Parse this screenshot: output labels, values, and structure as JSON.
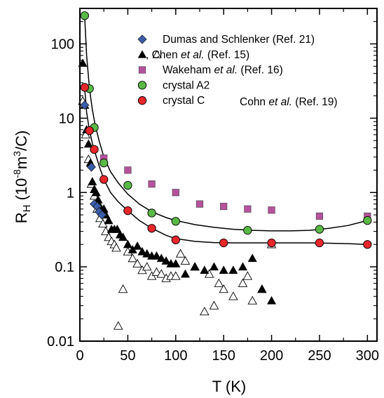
{
  "chart_data": {
    "type": "scatter",
    "xlabel": "T (K)",
    "ylabel": {
      "base": "R",
      "sub": "H",
      "unit_pre": " (10",
      "unit_exp1": "-8",
      "unit_mid": "m",
      "unit_exp2": "3",
      "unit_post": "/C)"
    },
    "xlim": [
      0,
      310
    ],
    "ylim": [
      0.01,
      300
    ],
    "y_scale": "log",
    "grid": false,
    "x_ticks": [
      0,
      50,
      100,
      150,
      200,
      250,
      300
    ],
    "x_tick_labels": [
      "0",
      "50",
      "100",
      "150",
      "200",
      "250",
      "300"
    ],
    "y_ticks": [
      0.01,
      0.1,
      1,
      10,
      100
    ],
    "y_tick_labels": [
      "0.01",
      "0.1",
      "1",
      "10",
      "100"
    ],
    "legend_position": "top-right",
    "series": [
      {
        "name": "Dumas and Schlenker (Ref. 21)",
        "marker": "diamond",
        "fill": "#3a5dac",
        "x": [
          5,
          12,
          15,
          18,
          20,
          23
        ],
        "y": [
          15,
          2.2,
          0.7,
          0.65,
          0.55,
          0.5
        ]
      },
      {
        "name_parts": [
          {
            "t": ", Chen ",
            "italic": false
          },
          {
            "t": "et al.",
            "italic": true
          },
          {
            "t": " (Ref. 15)",
            "italic": false
          }
        ],
        "name": "Chen et al. (Ref. 15)",
        "marker": "triangle-filled",
        "fill": "#000000",
        "x": [
          3,
          5,
          7,
          9,
          11,
          13,
          15,
          17,
          19,
          21,
          23,
          25,
          27,
          30,
          33,
          36,
          39,
          42,
          45,
          50,
          55,
          60,
          65,
          70,
          75,
          80,
          85,
          90,
          95,
          100,
          110,
          120,
          130,
          140,
          150,
          160,
          170,
          180,
          190,
          200
        ],
        "y": [
          55,
          15,
          7,
          4.5,
          2.5,
          1.4,
          1.1,
          1.0,
          0.8,
          0.65,
          0.55,
          0.6,
          0.5,
          0.42,
          0.32,
          0.32,
          0.32,
          0.27,
          0.25,
          0.2,
          0.17,
          0.19,
          0.16,
          0.15,
          0.14,
          0.14,
          0.13,
          0.12,
          0.11,
          0.11,
          0.08,
          0.1,
          0.09,
          0.1,
          0.09,
          0.09,
          0.1,
          0.13,
          0.05,
          0.035
        ]
      },
      {
        "name": "Chen open",
        "marker": "triangle-open",
        "fill": "none",
        "x": [
          3,
          6,
          9,
          12,
          15,
          18,
          21,
          24,
          27,
          30,
          33,
          36,
          38,
          40,
          45,
          50,
          55,
          60,
          65,
          70,
          75,
          80,
          85,
          90,
          95,
          100,
          105,
          110,
          120,
          130,
          135,
          140,
          145,
          150,
          160,
          170,
          175,
          180,
          190,
          200
        ],
        "y": [
          17,
          6,
          2.8,
          1.3,
          0.9,
          0.6,
          0.45,
          0.38,
          0.3,
          0.25,
          0.22,
          0.2,
          0.18,
          0.016,
          0.05,
          0.16,
          0.13,
          0.11,
          0.09,
          0.1,
          0.075,
          0.085,
          0.08,
          0.07,
          0.075,
          0.075,
          0.15,
          0.12,
          0.1,
          0.025,
          0.08,
          0.03,
          0.06,
          0.05,
          0.04,
          0.06,
          0.075,
          0.035,
          0.05,
          0.2
        ]
      },
      {
        "name_parts": [
          {
            "t": "Wakeham ",
            "italic": false
          },
          {
            "t": "et al.",
            "italic": true
          },
          {
            "t": " (Ref. 16)",
            "italic": false
          }
        ],
        "name": "Wakeham et al. (Ref. 16)",
        "marker": "square",
        "fill": "#b4529b",
        "x": [
          25,
          50,
          75,
          100,
          125,
          150,
          175,
          200,
          250,
          300
        ],
        "y": [
          2.9,
          2.0,
          1.3,
          1.0,
          0.7,
          0.65,
          0.6,
          0.58,
          0.48,
          0.48
        ]
      },
      {
        "name": "crystal A2",
        "marker": "circle",
        "fill": "#5ab946",
        "x": [
          5,
          10,
          15,
          25,
          50,
          75,
          100,
          175,
          250,
          300
        ],
        "y": [
          240,
          25,
          7.5,
          2.5,
          1.25,
          0.53,
          0.41,
          0.31,
          0.32,
          0.42
        ]
      },
      {
        "name": "crystal C",
        "marker": "circle",
        "fill": "#e8262b",
        "x": [
          5,
          10,
          15,
          25,
          50,
          75,
          100,
          150,
          200,
          250,
          300
        ],
        "y": [
          26,
          6.8,
          3.8,
          1.5,
          0.57,
          0.33,
          0.23,
          0.21,
          0.21,
          0.21,
          0.2
        ]
      }
    ],
    "fit_curves": [
      {
        "name": "fit A2",
        "x": [
          5,
          7,
          10,
          13,
          16,
          20,
          25,
          32,
          40,
          50,
          62,
          75,
          90,
          100,
          120,
          140,
          160,
          180,
          200,
          220,
          240,
          260,
          280,
          300
        ],
        "y": [
          240,
          70,
          25,
          13,
          8,
          5,
          3.0,
          1.9,
          1.35,
          0.95,
          0.7,
          0.55,
          0.46,
          0.42,
          0.37,
          0.34,
          0.32,
          0.31,
          0.305,
          0.305,
          0.31,
          0.33,
          0.36,
          0.42
        ]
      },
      {
        "name": "fit C",
        "x": [
          5,
          7,
          10,
          13,
          16,
          20,
          25,
          32,
          40,
          50,
          62,
          75,
          90,
          100,
          120,
          140,
          160,
          180,
          200,
          220,
          240,
          260,
          280,
          300
        ],
        "y": [
          26,
          12,
          6.8,
          4.6,
          3.4,
          2.3,
          1.5,
          1.0,
          0.75,
          0.57,
          0.42,
          0.33,
          0.265,
          0.24,
          0.22,
          0.212,
          0.21,
          0.21,
          0.21,
          0.21,
          0.21,
          0.208,
          0.205,
          0.2
        ]
      }
    ],
    "annotation_parts": [
      {
        "t": "Cohn ",
        "italic": false
      },
      {
        "t": "et al.",
        "italic": true
      },
      {
        "t": " (Ref. 19)",
        "italic": false
      }
    ],
    "annotation": "Cohn et al. (Ref. 19)"
  }
}
